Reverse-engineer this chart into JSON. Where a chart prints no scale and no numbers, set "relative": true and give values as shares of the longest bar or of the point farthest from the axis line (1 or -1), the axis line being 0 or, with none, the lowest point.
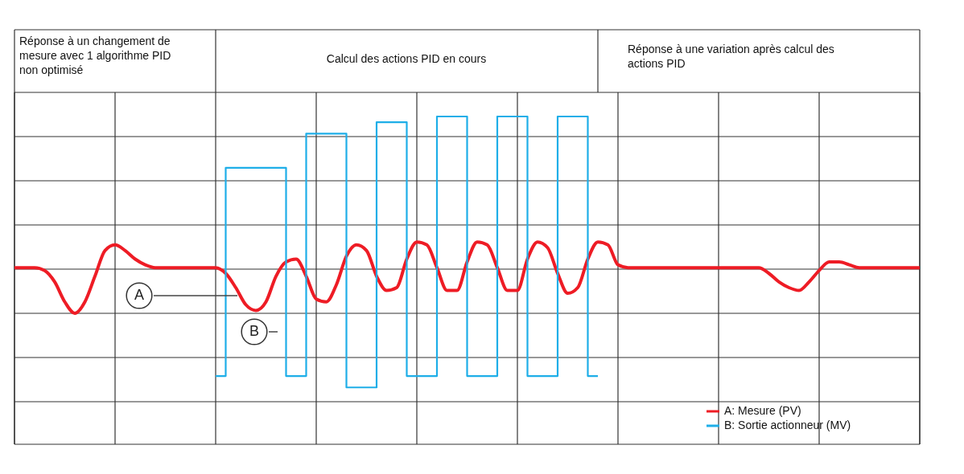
{
  "chart_data": {
    "type": "line",
    "relative": true,
    "grid": true,
    "legend": "bottom right",
    "categories": [
      null,
      null,
      null,
      null,
      null,
      null,
      null,
      null,
      null,
      null,
      null,
      null,
      null,
      null,
      null,
      null,
      null,
      null,
      null,
      null,
      null,
      null,
      null,
      null,
      null,
      null,
      null,
      null,
      null,
      null,
      null,
      null,
      null,
      null,
      null,
      null,
      null,
      null,
      null,
      null,
      null,
      null,
      null,
      null,
      null,
      null,
      null,
      null,
      null,
      null,
      null,
      null,
      null,
      null,
      null,
      null,
      null,
      null,
      null,
      null,
      null,
      null,
      null,
      null,
      null,
      null,
      null,
      null,
      null,
      null,
      null,
      null,
      null,
      null,
      null,
      null,
      null,
      null,
      null,
      null,
      null,
      null,
      null,
      null,
      null,
      null,
      null,
      null,
      null,
      null,
      null
    ],
    "annotations": [
      "Réponse à un changement de mesure avec 1 algorithme PID non optimisé",
      "Calcul des actions PID en cours",
      "Réponse à une variation après calcul des actions PID",
      "A",
      "B"
    ],
    "series": [
      {
        "name": "A: Mesure (PV)",
        "type": "line",
        "color": "#ee1c25",
        "values": [
          0.47,
          0.47,
          0.47,
          0.46,
          0.42,
          0.35,
          0.31,
          0.35,
          0.44,
          0.53,
          0.55,
          0.53,
          0.5,
          0.48,
          0.47,
          0.47,
          0.47,
          0.47,
          0.47,
          0.47,
          0.47,
          0.45,
          0.4,
          0.34,
          0.32,
          0.35,
          0.44,
          0.49,
          0.5,
          0.44,
          0.36,
          0.35,
          0.41,
          0.51,
          0.55,
          0.53,
          0.44,
          0.39,
          0.4,
          0.5,
          0.56,
          0.55,
          0.47,
          0.39,
          0.39,
          0.49,
          0.56,
          0.55,
          0.47,
          0.39,
          0.39,
          0.5,
          0.56,
          0.54,
          0.45,
          0.38,
          0.4,
          0.5,
          0.56,
          0.55,
          0.48,
          0.47,
          0.47,
          0.47,
          0.47,
          0.47,
          0.47,
          0.47,
          0.47,
          0.47,
          0.47,
          0.47,
          0.47,
          0.47,
          0.47,
          0.45,
          0.42,
          0.4,
          0.39,
          0.42,
          0.46,
          0.49,
          0.49,
          0.48,
          0.47,
          0.47,
          0.47,
          0.47,
          0.47,
          0.47,
          0.47
        ]
      },
      {
        "name": "B: Sortie actionneur (MV)",
        "type": "step",
        "color": "#1eaee8",
        "values": [
          null,
          null,
          null,
          null,
          null,
          null,
          null,
          null,
          null,
          null,
          null,
          null,
          null,
          null,
          null,
          null,
          null,
          null,
          null,
          null,
          0.09,
          0.82,
          0.82,
          0.82,
          0.82,
          0.82,
          0.82,
          0.09,
          0.09,
          0.94,
          0.94,
          0.94,
          0.94,
          0.05,
          0.05,
          0.05,
          0.98,
          0.98,
          0.98,
          0.09,
          0.09,
          0.09,
          1.0,
          1.0,
          1.0,
          0.09,
          0.09,
          0.09,
          1.0,
          1.0,
          1.0,
          0.09,
          0.09,
          0.09,
          1.0,
          1.0,
          1.0,
          0.09,
          0.09,
          null,
          null,
          null,
          null,
          null,
          null,
          null,
          null,
          null,
          null,
          null,
          null,
          null,
          null,
          null,
          null,
          null,
          null,
          null,
          null,
          null,
          null,
          null,
          null,
          null,
          null,
          null,
          null,
          null,
          null,
          null,
          null
        ]
      }
    ]
  }
}
